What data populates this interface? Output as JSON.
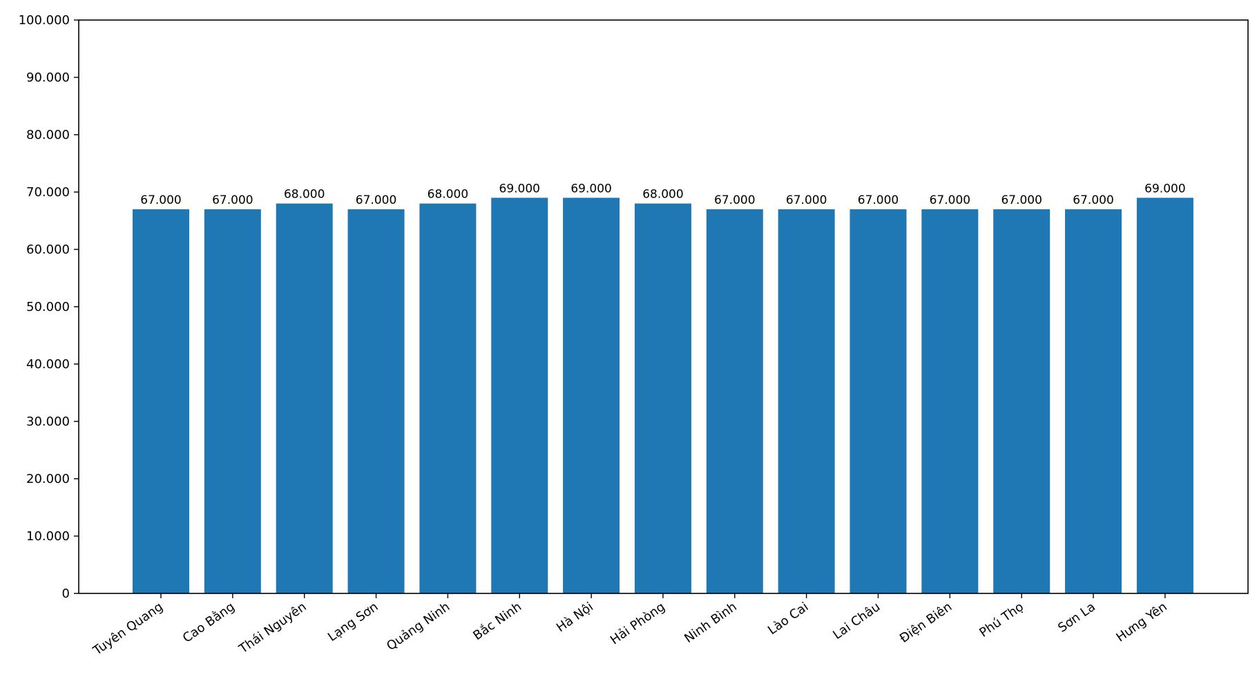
{
  "chart_data": {
    "type": "bar",
    "title": "",
    "xlabel": "",
    "ylabel": "",
    "ylim": [
      0,
      100000
    ],
    "yticks": [
      0,
      10000,
      20000,
      30000,
      40000,
      50000,
      60000,
      70000,
      80000,
      90000,
      100000
    ],
    "ytick_labels": [
      "0",
      "10.000",
      "20.000",
      "30.000",
      "40.000",
      "50.000",
      "60.000",
      "70.000",
      "80.000",
      "90.000",
      "100.000"
    ],
    "grid": false,
    "legend": "none",
    "bar_color": "#1f77b4",
    "categories": [
      "Tuyên Quang",
      "Cao Bằng",
      "Thái Nguyên",
      "Lạng Sơn",
      "Quảng Ninh",
      "Bắc Ninh",
      "Hà Nội",
      "Hải Phòng",
      "Ninh Bình",
      "Lào Cai",
      "Lai Châu",
      "Điện Biên",
      "Phú Thọ",
      "Sơn La",
      "Hưng Yên"
    ],
    "values": [
      67000,
      67000,
      68000,
      67000,
      68000,
      69000,
      69000,
      68000,
      67000,
      67000,
      67000,
      67000,
      67000,
      67000,
      69000
    ],
    "value_labels": [
      "67.000",
      "67.000",
      "68.000",
      "67.000",
      "68.000",
      "69.000",
      "69.000",
      "68.000",
      "67.000",
      "67.000",
      "67.000",
      "67.000",
      "67.000",
      "67.000",
      "69.000"
    ]
  }
}
